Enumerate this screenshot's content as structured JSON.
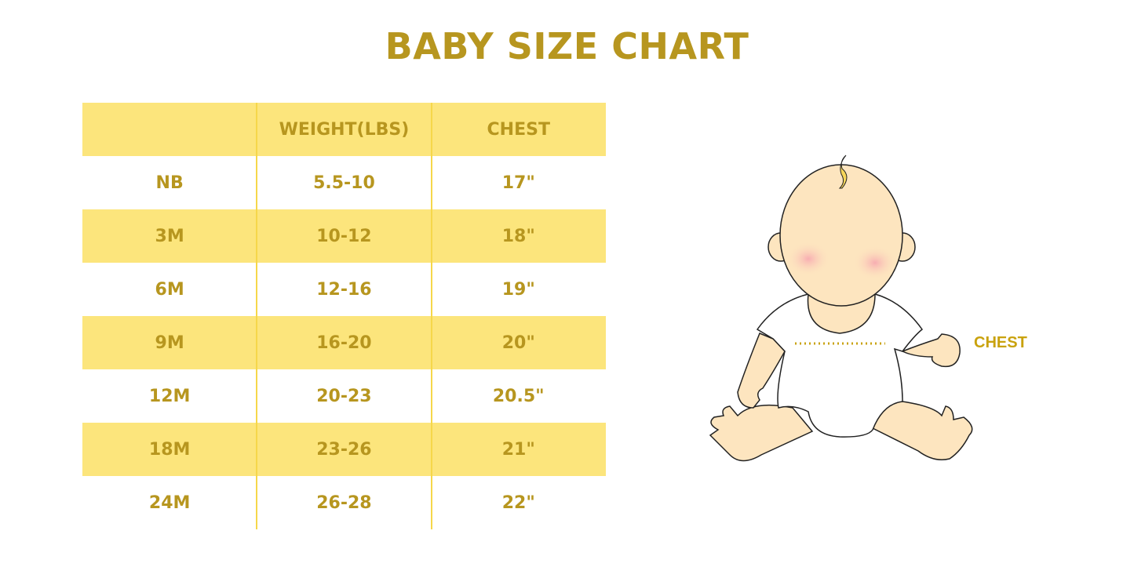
{
  "title": "BABY SIZE CHART",
  "table": {
    "headers": [
      "",
      "WEIGHT(LBS)",
      "CHEST"
    ],
    "rows": [
      [
        "NB",
        "5.5-10",
        "17\""
      ],
      [
        "3M",
        "10-12",
        "18\""
      ],
      [
        "6M",
        "12-16",
        "19\""
      ],
      [
        "9M",
        "16-20",
        "20\""
      ],
      [
        "12M",
        "20-23",
        "20.5\""
      ],
      [
        "18M",
        "23-26",
        "21\""
      ],
      [
        "24M",
        "26-28",
        "22\""
      ]
    ]
  },
  "illustration": {
    "chest_label": "CHEST"
  },
  "colors": {
    "text": "#b7961f",
    "band": "#fce57c",
    "divider": "#f6d74a",
    "skin": "#fde5bf"
  }
}
